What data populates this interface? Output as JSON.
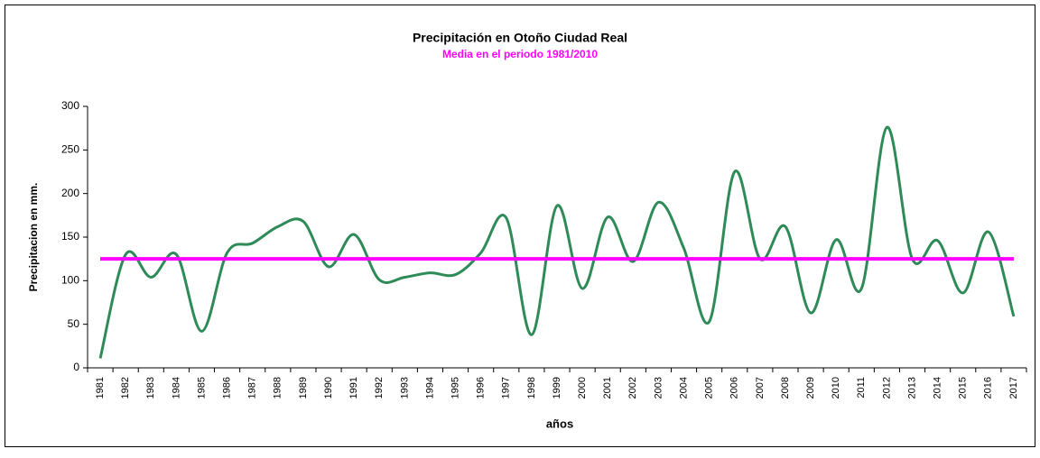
{
  "chart_data": {
    "type": "line",
    "title": "Precipitación en  Otoño Ciudad Real",
    "subtitle": "Media en el periodo 1981/2010",
    "x_label": "años",
    "y_label": "Precipitacion  en mm.",
    "categories": [
      "1981",
      "1982",
      "1983",
      "1984",
      "1985",
      "1986",
      "1987",
      "1988",
      "1989",
      "1990",
      "1991",
      "1992",
      "1993",
      "1994",
      "1995",
      "1996",
      "1997",
      "1998",
      "1999",
      "2000",
      "2001",
      "2002",
      "2003",
      "2004",
      "2005",
      "2006",
      "2007",
      "2008",
      "2009",
      "2010",
      "2011",
      "2012",
      "2013",
      "2014",
      "2015",
      "2016",
      "2017"
    ],
    "series": [
      {
        "color": "#2e8b57",
        "smooth": true,
        "values": [
          11,
          130,
          104,
          130,
          42,
          132,
          143,
          162,
          168,
          116,
          153,
          101,
          104,
          109,
          107,
          132,
          172,
          38,
          186,
          91,
          173,
          122,
          190,
          137,
          53,
          225,
          125,
          162,
          63,
          147,
          91,
          276,
          125,
          146,
          86,
          156,
          59
        ]
      },
      {
        "color": "#ff00ff",
        "smooth": false,
        "values": [
          125,
          125,
          125,
          125,
          125,
          125,
          125,
          125,
          125,
          125,
          125,
          125,
          125,
          125,
          125,
          125,
          125,
          125,
          125,
          125,
          125,
          125,
          125,
          125,
          125,
          125,
          125,
          125,
          125,
          125,
          125,
          125,
          125,
          125,
          125,
          125,
          125
        ]
      }
    ],
    "ylim": [
      0,
      300
    ],
    "yticks": [
      0,
      50,
      100,
      150,
      200,
      250,
      300
    ],
    "grid": false
  }
}
